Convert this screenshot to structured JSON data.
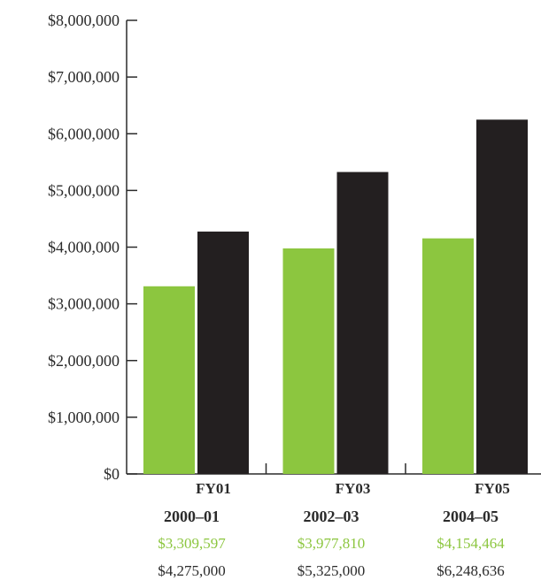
{
  "chart_data": {
    "type": "bar",
    "categories": [
      {
        "fy": "FY01",
        "years": "2000–01"
      },
      {
        "fy": "FY03",
        "years": "2002–03"
      },
      {
        "fy": "FY05",
        "years": "2004–05"
      }
    ],
    "series": [
      {
        "color": "#8cc63f",
        "values": [
          3309597,
          3977810,
          4154464
        ],
        "labels": [
          "$3,309,597",
          "$3,977,810",
          "$4,154,464"
        ]
      },
      {
        "color": "#231f20",
        "values": [
          4275000,
          5325000,
          6248636
        ],
        "labels": [
          "$4,275,000",
          "$5,325,000",
          "$6,248,636"
        ]
      }
    ],
    "yticks": [
      {
        "value": 0,
        "label": "$0"
      },
      {
        "value": 1000000,
        "label": "$1,000,000"
      },
      {
        "value": 2000000,
        "label": "$2,000,000"
      },
      {
        "value": 3000000,
        "label": "$3,000,000"
      },
      {
        "value": 4000000,
        "label": "$4,000,000"
      },
      {
        "value": 5000000,
        "label": "$5,000,000"
      },
      {
        "value": 6000000,
        "label": "$6,000,000"
      },
      {
        "value": 7000000,
        "label": "$7,000,000"
      },
      {
        "value": 8000000,
        "label": "$8,000,000"
      }
    ],
    "ylim": [
      0,
      8000000
    ],
    "grid": false,
    "legend": "none"
  }
}
